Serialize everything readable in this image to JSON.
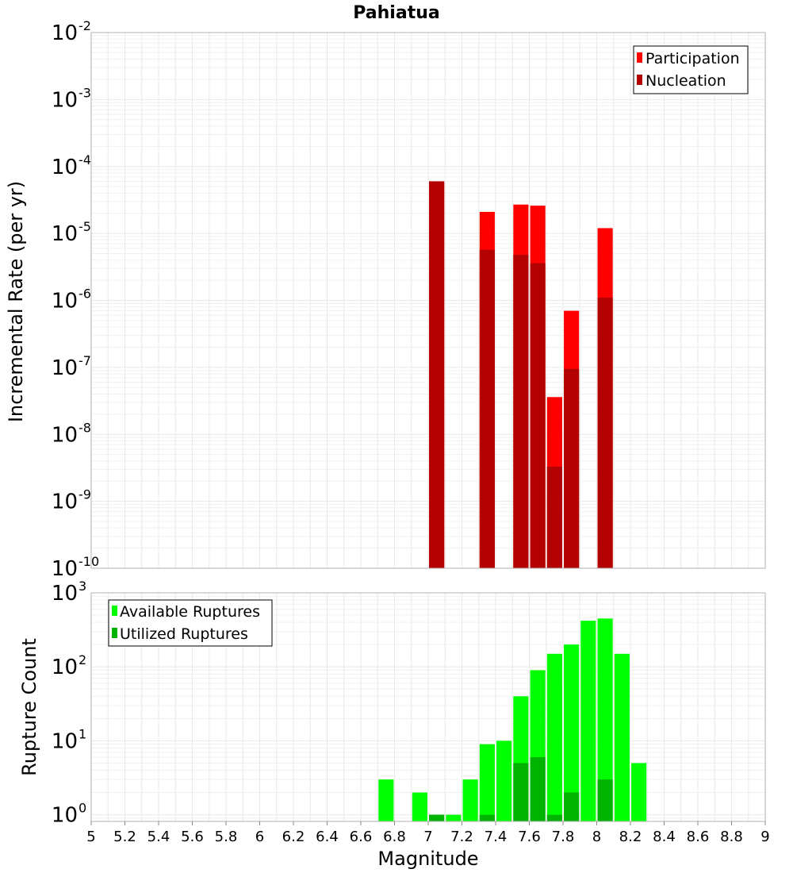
{
  "chart_data": [
    {
      "type": "bar",
      "title": "Pahiatua",
      "ylabel": "Incremental Rate (per yr)",
      "yscale": "log",
      "ylim_exp": [
        -10,
        -2
      ],
      "ytick_base": "10",
      "ytick_exps": [
        "-10",
        "-9",
        "-8",
        "-7",
        "-6",
        "-5",
        "-4",
        "-3",
        "-2"
      ],
      "xlim": [
        5,
        9
      ],
      "legend_position": "top-right",
      "series": [
        {
          "name": "Participation",
          "color": "#ff0000",
          "points": [
            {
              "x": 7.05,
              "y": 6e-05
            },
            {
              "x": 7.35,
              "y": 2.1e-05
            },
            {
              "x": 7.55,
              "y": 2.7e-05
            },
            {
              "x": 7.65,
              "y": 2.6e-05
            },
            {
              "x": 7.75,
              "y": 3.6e-08
            },
            {
              "x": 7.85,
              "y": 7e-07
            },
            {
              "x": 8.05,
              "y": 1.2e-05
            }
          ]
        },
        {
          "name": "Nucleation",
          "color": "#b30000",
          "points": [
            {
              "x": 7.05,
              "y": 6e-05
            },
            {
              "x": 7.35,
              "y": 5.7e-06
            },
            {
              "x": 7.55,
              "y": 4.8e-06
            },
            {
              "x": 7.65,
              "y": 3.6e-06
            },
            {
              "x": 7.75,
              "y": 3.3e-09
            },
            {
              "x": 7.85,
              "y": 9.5e-08
            },
            {
              "x": 8.05,
              "y": 1.1e-06
            }
          ]
        }
      ]
    },
    {
      "type": "bar",
      "xlabel": "Magnitude",
      "ylabel": "Rupture Count",
      "yscale": "log",
      "ylim_exp": [
        -0.09,
        3
      ],
      "ytick_base": "10",
      "ytick_exps": [
        "0",
        "1",
        "2",
        "3"
      ],
      "xlim": [
        5,
        9
      ],
      "xticks": [
        "5",
        "5.2",
        "5.4",
        "5.6",
        "5.8",
        "6",
        "6.2",
        "6.4",
        "6.6",
        "6.8",
        "7",
        "7.2",
        "7.4",
        "7.6",
        "7.8",
        "8",
        "8.2",
        "8.4",
        "8.6",
        "8.8",
        "9"
      ],
      "legend_position": "top-left",
      "series": [
        {
          "name": "Available Ruptures",
          "color": "#00ff00",
          "points": [
            {
              "x": 6.75,
              "y": 3
            },
            {
              "x": 6.95,
              "y": 2
            },
            {
              "x": 7.05,
              "y": 1
            },
            {
              "x": 7.15,
              "y": 1
            },
            {
              "x": 7.25,
              "y": 3
            },
            {
              "x": 7.35,
              "y": 9
            },
            {
              "x": 7.45,
              "y": 10
            },
            {
              "x": 7.55,
              "y": 40
            },
            {
              "x": 7.65,
              "y": 90
            },
            {
              "x": 7.75,
              "y": 150
            },
            {
              "x": 7.85,
              "y": 200
            },
            {
              "x": 7.95,
              "y": 420
            },
            {
              "x": 8.05,
              "y": 450
            },
            {
              "x": 8.15,
              "y": 150
            },
            {
              "x": 8.25,
              "y": 5
            }
          ]
        },
        {
          "name": "Utilized Ruptures",
          "color": "#00b300",
          "points": [
            {
              "x": 7.05,
              "y": 1
            },
            {
              "x": 7.35,
              "y": 1
            },
            {
              "x": 7.55,
              "y": 5
            },
            {
              "x": 7.65,
              "y": 6
            },
            {
              "x": 7.75,
              "y": 1
            },
            {
              "x": 7.85,
              "y": 2
            },
            {
              "x": 8.05,
              "y": 3
            }
          ]
        }
      ]
    }
  ]
}
